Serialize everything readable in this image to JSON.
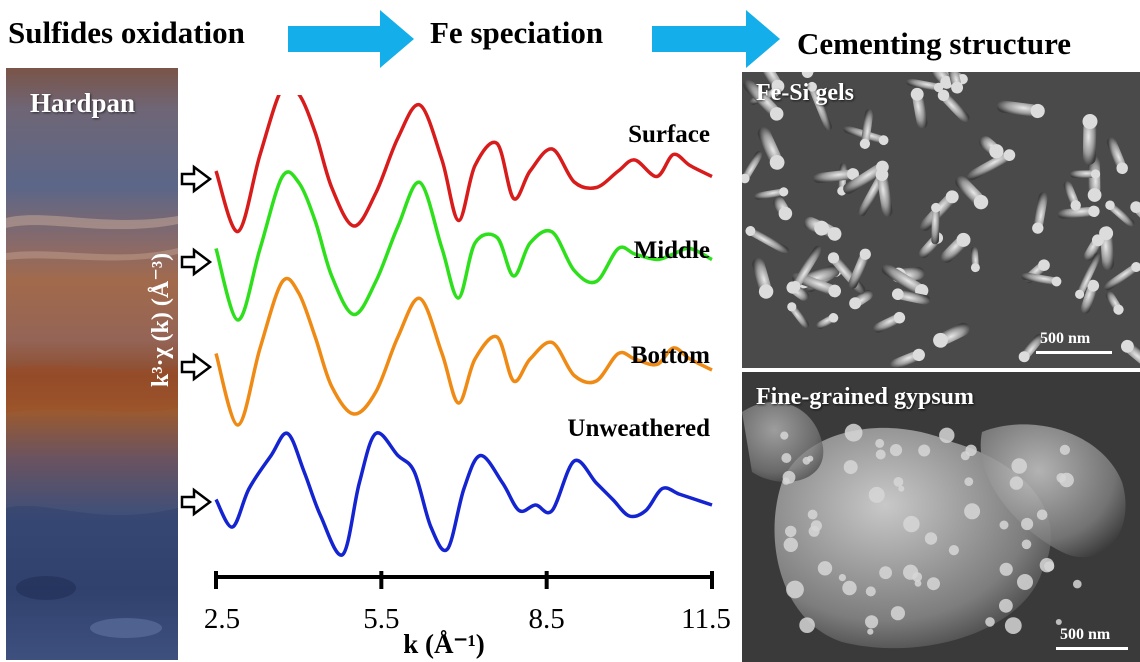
{
  "headers": {
    "step1": "Sulfides oxidation",
    "step2": "Fe speciation",
    "step3": "Cementing structure"
  },
  "photo": {
    "label": "Hardpan"
  },
  "chart_data": {
    "type": "line",
    "ylabel": "k³·χ (k) (Å⁻³)",
    "xlabel": "k (Å⁻¹)",
    "x_ticks": [
      "2.5",
      "5.5",
      "8.5",
      "11.5"
    ],
    "xlim": [
      2.5,
      11.5
    ],
    "series": [
      {
        "name": "Surface",
        "color": "#d81c1c",
        "x": [
          2.5,
          2.9,
          3.3,
          3.7,
          4.0,
          4.3,
          4.6,
          5.0,
          5.4,
          5.8,
          6.2,
          6.6,
          6.9,
          7.2,
          7.6,
          7.9,
          8.2,
          8.6,
          9.0,
          9.4,
          9.8,
          10.1,
          10.5,
          10.8,
          11.1,
          11.5
        ],
        "y": [
          0.2,
          -0.9,
          0.5,
          1.7,
          1.6,
          0.9,
          -0.1,
          -0.8,
          -0.2,
          0.8,
          1.4,
          0.4,
          -0.7,
          0.3,
          0.7,
          -0.3,
          0.2,
          0.6,
          0.0,
          -0.1,
          0.2,
          0.4,
          0.1,
          0.5,
          0.3,
          0.1
        ]
      },
      {
        "name": "Middle",
        "color": "#2ee01c",
        "x": [
          2.5,
          2.9,
          3.3,
          3.7,
          4.0,
          4.3,
          4.6,
          5.0,
          5.4,
          5.8,
          6.2,
          6.6,
          6.9,
          7.2,
          7.6,
          7.9,
          8.2,
          8.6,
          9.0,
          9.4,
          9.8,
          10.1,
          10.5,
          10.8,
          11.1,
          11.5
        ],
        "y": [
          0.3,
          -1.0,
          0.3,
          1.6,
          1.5,
          0.8,
          -0.2,
          -0.9,
          -0.3,
          0.7,
          1.5,
          0.3,
          -0.6,
          0.4,
          0.5,
          -0.2,
          0.4,
          0.6,
          -0.1,
          -0.3,
          0.3,
          0.2,
          0.1,
          0.2,
          0.3,
          0.1
        ]
      },
      {
        "name": "Bottom",
        "color": "#ef8a14",
        "x": [
          2.5,
          2.9,
          3.3,
          3.7,
          4.0,
          4.3,
          4.6,
          5.0,
          5.4,
          5.8,
          6.2,
          6.6,
          6.9,
          7.2,
          7.6,
          7.9,
          8.2,
          8.6,
          9.0,
          9.4,
          9.8,
          10.1,
          10.5,
          10.8,
          11.1,
          11.5
        ],
        "y": [
          0.3,
          -1.0,
          0.4,
          1.6,
          1.4,
          0.6,
          -0.3,
          -0.8,
          -0.4,
          0.6,
          1.3,
          0.3,
          -0.6,
          0.2,
          0.6,
          -0.2,
          0.2,
          0.5,
          -0.1,
          -0.2,
          0.3,
          0.2,
          0.1,
          0.4,
          0.2,
          0.0
        ]
      },
      {
        "name": "Unweathered",
        "color": "#1424d0",
        "x": [
          2.5,
          2.8,
          3.1,
          3.5,
          3.8,
          4.1,
          4.4,
          4.8,
          5.1,
          5.4,
          5.8,
          6.1,
          6.4,
          6.7,
          7.0,
          7.3,
          7.7,
          8.0,
          8.3,
          8.6,
          9.0,
          9.4,
          9.7,
          10.0,
          10.3,
          10.6,
          10.9,
          11.2,
          11.5
        ],
        "y": [
          0.1,
          -0.4,
          0.3,
          0.9,
          1.3,
          0.6,
          -0.2,
          -0.9,
          0.4,
          1.3,
          0.9,
          0.6,
          -0.4,
          -0.8,
          0.3,
          0.9,
          0.4,
          -0.1,
          0.0,
          -0.1,
          0.8,
          0.4,
          0.1,
          -0.2,
          -0.1,
          0.3,
          0.2,
          0.1,
          0.0
        ]
      }
    ]
  },
  "sem": {
    "top_caption": "Fe-Si gels",
    "top_scale": "500 nm",
    "bottom_caption": "Fine-grained gypsum",
    "bottom_scale": "500 nm"
  },
  "colors": {
    "arrow": "#14aeea"
  }
}
